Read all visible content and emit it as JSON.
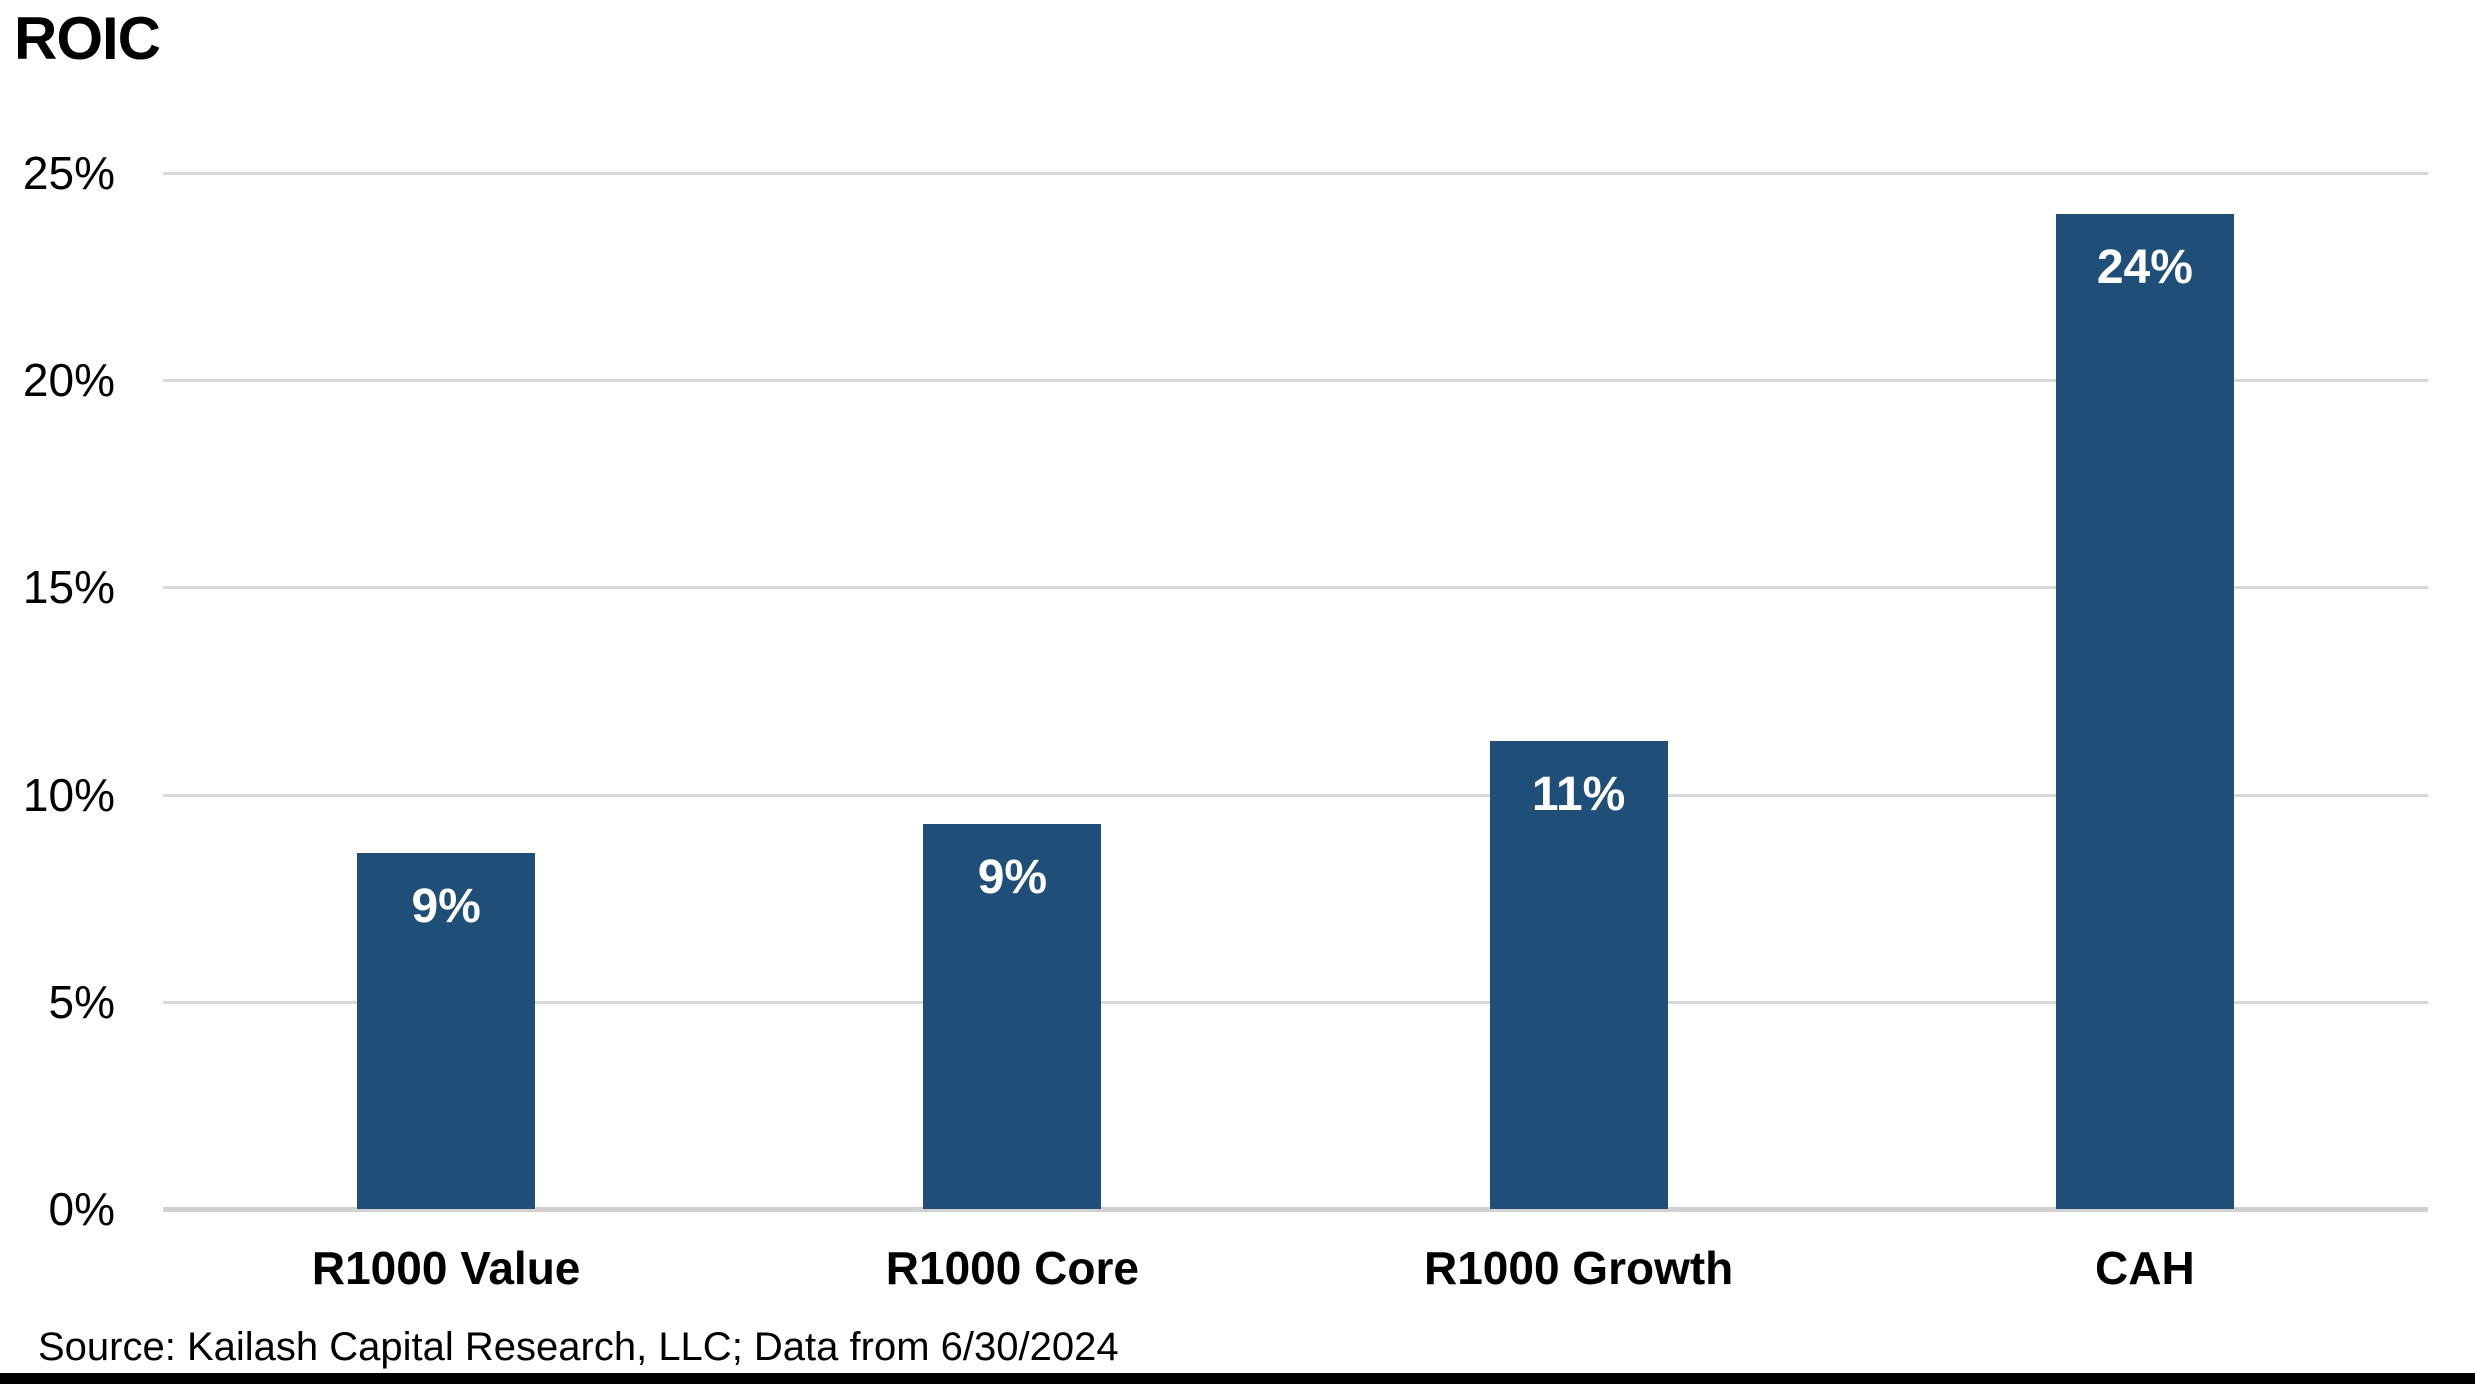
{
  "page": {
    "title": "ROIC",
    "source_note": "Source: Kailash Capital Research, LLC; Data from 6/30/2024"
  },
  "chart_data": {
    "type": "bar",
    "title": "ROIC",
    "categories": [
      "R1000 Value",
      "R1000 Core",
      "R1000 Growth",
      "CAH"
    ],
    "values": [
      9,
      9,
      11,
      24
    ],
    "bars": [
      {
        "category": "R1000 Value",
        "value": 9,
        "label": "9%",
        "precise_pct": 8.6
      },
      {
        "category": "R1000 Core",
        "value": 9,
        "label": "9%",
        "precise_pct": 9.3
      },
      {
        "category": "R1000 Growth",
        "value": 11,
        "label": "11%",
        "precise_pct": 11.3
      },
      {
        "category": "CAH",
        "value": 24,
        "label": "24%",
        "precise_pct": 24.0
      }
    ],
    "xlabel": "",
    "ylabel": "",
    "ylim": [
      0,
      25
    ],
    "yticks": [
      {
        "value": 0,
        "label": "0%"
      },
      {
        "value": 5,
        "label": "5%"
      },
      {
        "value": 10,
        "label": "10%"
      },
      {
        "value": 15,
        "label": "15%"
      },
      {
        "value": 20,
        "label": "20%"
      },
      {
        "value": 25,
        "label": "25%"
      }
    ],
    "grid": "horizontal",
    "legend": "none",
    "value_labels_position": "inside-top",
    "colors": {
      "bar": "#1F4E79",
      "gridline": "#D9D9D9",
      "axis_line": "#D2D0D0",
      "value_label_text": "#FFFFFF",
      "text": "#000000",
      "footer_bar": "#000000",
      "background": "#FFFFFF"
    },
    "source_note": "Source: Kailash Capital Research, LLC; Data from 6/30/2024"
  }
}
